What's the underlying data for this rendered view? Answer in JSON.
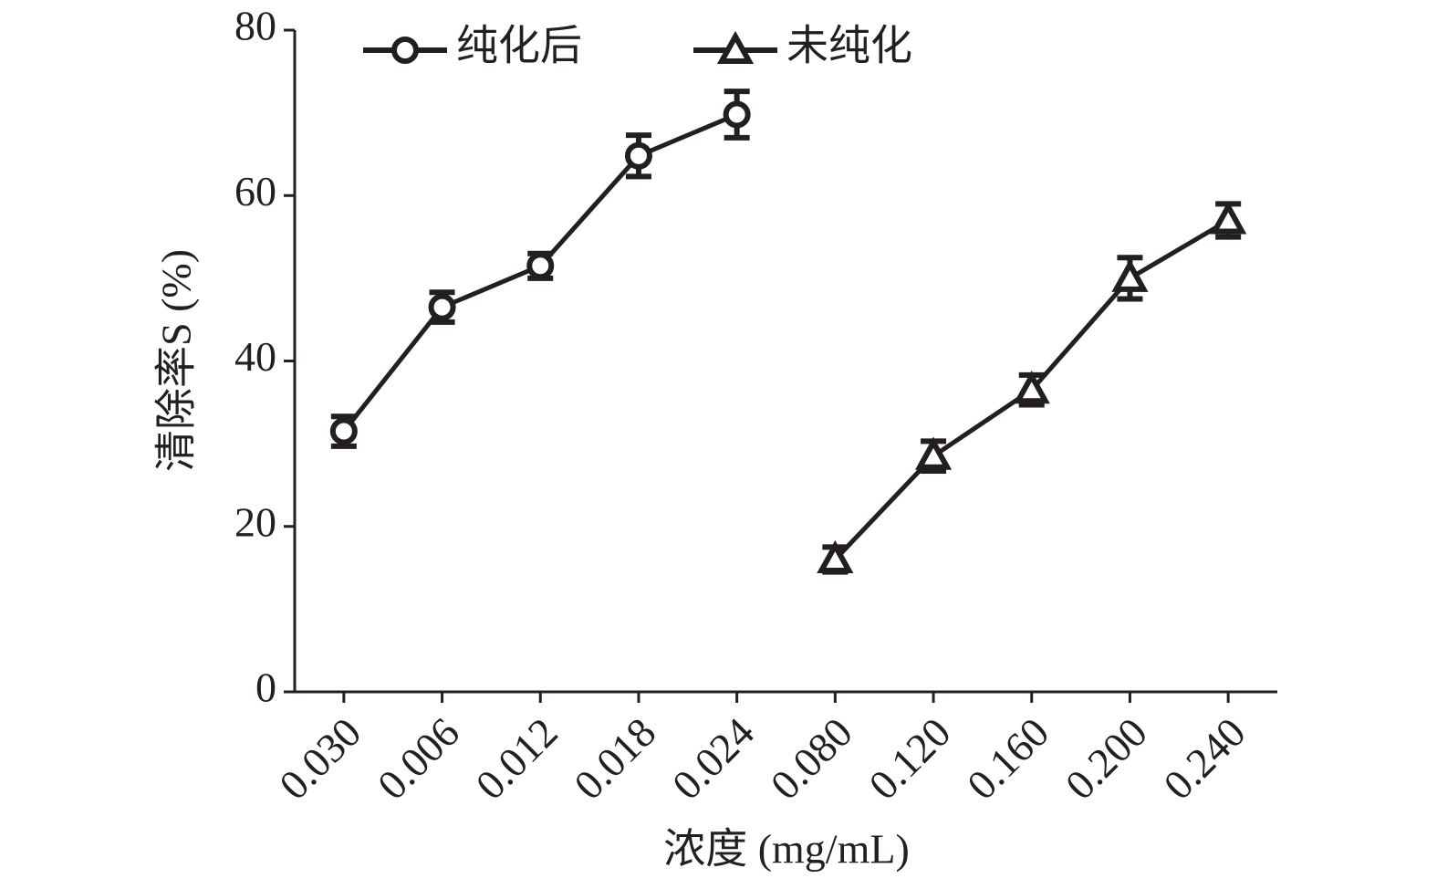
{
  "chart_data": {
    "type": "line",
    "xlabel": "浓度 (mg/mL)",
    "ylabel": "清除率S (%)",
    "categories": [
      "0.030",
      "0.006",
      "0.012",
      "0.018",
      "0.024",
      "0.080",
      "0.120",
      "0.160",
      "0.200",
      "0.240"
    ],
    "series": [
      {
        "name": "纯化后",
        "color": "#231f20",
        "marker": "circle",
        "values": [
          31.5,
          46.5,
          51.5,
          64.8,
          69.8,
          null,
          null,
          null,
          null,
          null
        ],
        "errors": [
          1.8,
          1.8,
          1.5,
          2.5,
          2.8,
          null,
          null,
          null,
          null,
          null
        ]
      },
      {
        "name": "未纯化",
        "color": "#231f20",
        "marker": "triangle",
        "values": [
          null,
          null,
          null,
          null,
          null,
          16,
          28.5,
          36.5,
          50,
          57
        ],
        "errors": [
          null,
          null,
          null,
          null,
          null,
          1.5,
          1.8,
          1.8,
          2.5,
          2.0
        ]
      }
    ],
    "ylim": [
      0,
      80
    ],
    "yticks": [
      0,
      20,
      40,
      60,
      80
    ],
    "grid": false,
    "legend": "top"
  }
}
